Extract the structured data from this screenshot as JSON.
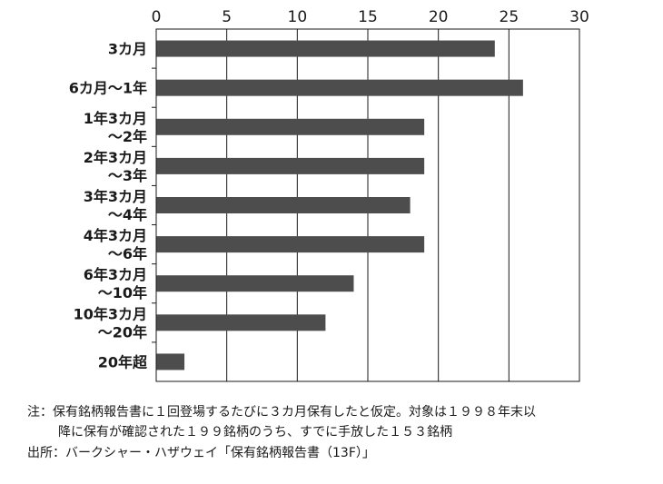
{
  "chart_data": {
    "type": "bar",
    "orientation": "horizontal",
    "categories": [
      [
        "3カ月"
      ],
      [
        "6カ月〜1年"
      ],
      [
        "1年3カ月",
        "〜2年"
      ],
      [
        "2年3カ月",
        "〜3年"
      ],
      [
        "3年3カ月",
        "〜4年"
      ],
      [
        "4年3カ月",
        "〜6年"
      ],
      [
        "6年3カ月",
        "〜10年"
      ],
      [
        "10年3カ月",
        "〜20年"
      ],
      [
        "20年超"
      ]
    ],
    "values": [
      24,
      26,
      19,
      19,
      18,
      19,
      14,
      12,
      2
    ],
    "xlim": [
      0,
      30
    ],
    "xticks": [
      "0",
      "5",
      "10",
      "15",
      "20",
      "25",
      "30"
    ],
    "x_axis_position": "top",
    "grid": true,
    "bar_color": "#4d4d4d",
    "title": "",
    "xlabel": "",
    "ylabel": ""
  },
  "notes": {
    "line1": "注：保有銘柄報告書に１回登場するたびに３カ月保有したと仮定。対象は１９９８年末以",
    "line2": "降に保有が確認された１９９銘柄のうち、すでに手放した１５３銘柄",
    "source": "出所：バークシャー・ハザウェイ「保有銘柄報告書（13F）」"
  }
}
